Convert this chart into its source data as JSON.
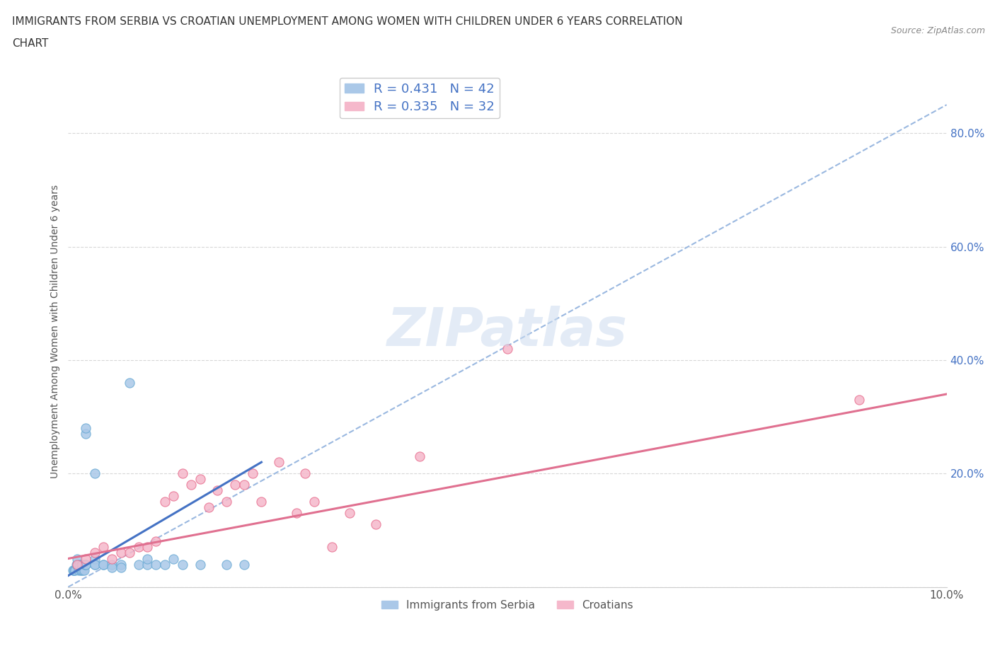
{
  "title_line1": "IMMIGRANTS FROM SERBIA VS CROATIAN UNEMPLOYMENT AMONG WOMEN WITH CHILDREN UNDER 6 YEARS CORRELATION",
  "title_line2": "CHART",
  "source_text": "Source: ZipAtlas.com",
  "ylabel": "Unemployment Among Women with Children Under 6 years",
  "xlim": [
    0.0,
    0.1
  ],
  "ylim": [
    0.0,
    0.9
  ],
  "ytick_vals": [
    0.0,
    0.2,
    0.4,
    0.6,
    0.8
  ],
  "ytick_labels": [
    "",
    "20.0%",
    "40.0%",
    "60.0%",
    "80.0%"
  ],
  "xtick_vals": [
    0.0,
    0.01,
    0.02,
    0.03,
    0.04,
    0.05,
    0.06,
    0.07,
    0.08,
    0.09,
    0.1
  ],
  "serbia_color": "#aac8e8",
  "croatian_color": "#f5b8cb",
  "serbia_edge": "#6aaad4",
  "croatian_edge": "#e87090",
  "trendline_serbia_color": "#4472c4",
  "trendline_croatian_color": "#e07090",
  "trendline_dashed_color": "#9ab8e0",
  "R_serbia": 0.431,
  "N_serbia": 42,
  "R_croatian": 0.335,
  "N_croatian": 32,
  "legend_label_serbia": "Immigrants from Serbia",
  "legend_label_croatian": "Croatians",
  "watermark": "ZIPatlas",
  "serbia_x": [
    0.0005,
    0.0006,
    0.0007,
    0.0008,
    0.0009,
    0.001,
    0.001,
    0.001,
    0.0012,
    0.0013,
    0.0014,
    0.0015,
    0.0015,
    0.0016,
    0.0017,
    0.0018,
    0.0019,
    0.002,
    0.002,
    0.002,
    0.002,
    0.003,
    0.003,
    0.003,
    0.003,
    0.004,
    0.004,
    0.005,
    0.005,
    0.006,
    0.006,
    0.007,
    0.008,
    0.009,
    0.009,
    0.01,
    0.011,
    0.012,
    0.013,
    0.015,
    0.018,
    0.02
  ],
  "serbia_y": [
    0.03,
    0.03,
    0.03,
    0.03,
    0.04,
    0.04,
    0.04,
    0.05,
    0.03,
    0.04,
    0.03,
    0.03,
    0.04,
    0.04,
    0.03,
    0.03,
    0.04,
    0.04,
    0.27,
    0.28,
    0.04,
    0.04,
    0.05,
    0.2,
    0.04,
    0.04,
    0.04,
    0.04,
    0.035,
    0.04,
    0.035,
    0.36,
    0.04,
    0.04,
    0.05,
    0.04,
    0.04,
    0.05,
    0.04,
    0.04,
    0.04,
    0.04
  ],
  "serbia_trend_x": [
    0.0,
    0.022
  ],
  "serbia_trend_y": [
    0.02,
    0.22
  ],
  "croatian_x": [
    0.001,
    0.002,
    0.003,
    0.004,
    0.005,
    0.006,
    0.007,
    0.008,
    0.009,
    0.01,
    0.011,
    0.012,
    0.013,
    0.014,
    0.015,
    0.016,
    0.017,
    0.018,
    0.019,
    0.02,
    0.021,
    0.022,
    0.024,
    0.026,
    0.027,
    0.028,
    0.03,
    0.032,
    0.035,
    0.04,
    0.05,
    0.09
  ],
  "croatian_y": [
    0.04,
    0.05,
    0.06,
    0.07,
    0.05,
    0.06,
    0.06,
    0.07,
    0.07,
    0.08,
    0.15,
    0.16,
    0.2,
    0.18,
    0.19,
    0.14,
    0.17,
    0.15,
    0.18,
    0.18,
    0.2,
    0.15,
    0.22,
    0.13,
    0.2,
    0.15,
    0.07,
    0.13,
    0.11,
    0.23,
    0.42,
    0.33
  ],
  "croatian_trend_x": [
    0.0,
    0.1
  ],
  "croatian_trend_y": [
    0.05,
    0.34
  ],
  "background_color": "#ffffff",
  "grid_color": "#d8d8d8"
}
